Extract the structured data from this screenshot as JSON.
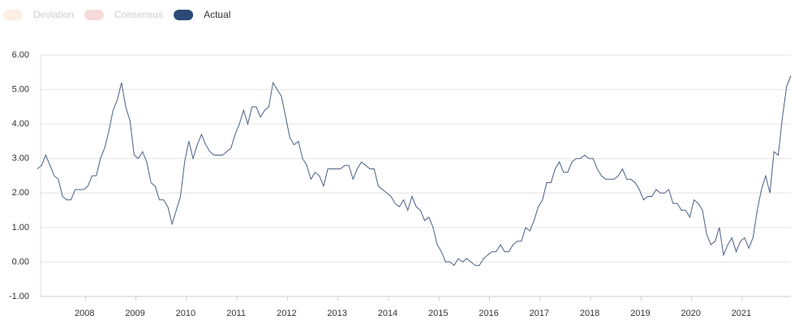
{
  "chart_data": {
    "type": "line",
    "legend": [
      {
        "name": "Deviation",
        "color": "#fbeee4"
      },
      {
        "name": "Consensus",
        "color": "#f6d9d9"
      },
      {
        "name": "Actual",
        "color": "#2d4a77"
      }
    ],
    "series": [
      {
        "name": "Actual",
        "color": "#4a5f85",
        "values": [
          2.7,
          2.8,
          3.1,
          2.8,
          2.5,
          2.4,
          1.9,
          1.8,
          1.8,
          2.1,
          2.1,
          2.1,
          2.2,
          2.5,
          2.5,
          3.0,
          3.3,
          3.8,
          4.4,
          4.7,
          5.2,
          4.5,
          4.1,
          3.1,
          3.0,
          3.2,
          2.9,
          2.3,
          2.2,
          1.8,
          1.8,
          1.6,
          1.1,
          1.5,
          1.9,
          2.9,
          3.5,
          3.0,
          3.4,
          3.7,
          3.4,
          3.2,
          3.1,
          3.1,
          3.1,
          3.2,
          3.3,
          3.7,
          4.0,
          4.4,
          4.0,
          4.5,
          4.5,
          4.2,
          4.4,
          4.5,
          5.2,
          5.0,
          4.8,
          4.2,
          3.6,
          3.4,
          3.5,
          3.0,
          2.8,
          2.4,
          2.6,
          2.5,
          2.2,
          2.7,
          2.7,
          2.7,
          2.7,
          2.8,
          2.8,
          2.4,
          2.7,
          2.9,
          2.8,
          2.7,
          2.7,
          2.2,
          2.1,
          2.0,
          1.9,
          1.7,
          1.6,
          1.8,
          1.5,
          1.9,
          1.6,
          1.5,
          1.2,
          1.3,
          1.0,
          0.5,
          0.3,
          0.0,
          0.0,
          -0.1,
          0.1,
          0.0,
          0.1,
          0.0,
          -0.1,
          -0.1,
          0.1,
          0.2,
          0.3,
          0.3,
          0.5,
          0.3,
          0.3,
          0.5,
          0.6,
          0.6,
          1.0,
          0.9,
          1.2,
          1.6,
          1.8,
          2.3,
          2.3,
          2.7,
          2.9,
          2.6,
          2.6,
          2.9,
          3.0,
          3.0,
          3.1,
          3.0,
          3.0,
          2.7,
          2.5,
          2.4,
          2.4,
          2.4,
          2.5,
          2.7,
          2.4,
          2.4,
          2.3,
          2.1,
          1.8,
          1.9,
          1.9,
          2.1,
          2.0,
          2.0,
          2.1,
          1.7,
          1.7,
          1.5,
          1.5,
          1.3,
          1.8,
          1.7,
          1.5,
          0.8,
          0.5,
          0.6,
          1.0,
          0.2,
          0.5,
          0.7,
          0.3,
          0.6,
          0.7,
          0.4,
          0.7,
          1.5,
          2.1,
          2.5,
          2.0,
          3.2,
          3.1,
          4.2,
          5.1,
          5.4
        ]
      }
    ],
    "xlim": [
      0,
      179
    ],
    "xticks": [
      {
        "value": 12,
        "label": "2008"
      },
      {
        "value": 24,
        "label": "2009"
      },
      {
        "value": 36,
        "label": "2010"
      },
      {
        "value": 48,
        "label": "2011"
      },
      {
        "value": 60,
        "label": "2012"
      },
      {
        "value": 72,
        "label": "2013"
      },
      {
        "value": 84,
        "label": "2014"
      },
      {
        "value": 96,
        "label": "2015"
      },
      {
        "value": 108,
        "label": "2016"
      },
      {
        "value": 120,
        "label": "2017"
      },
      {
        "value": 132,
        "label": "2018"
      },
      {
        "value": 144,
        "label": "2019"
      },
      {
        "value": 156,
        "label": "2020"
      },
      {
        "value": 168,
        "label": "2021"
      }
    ],
    "ylim": [
      -1,
      6
    ],
    "yticks": [
      {
        "value": -1,
        "label": "-1.00"
      },
      {
        "value": 0,
        "label": "0.00"
      },
      {
        "value": 1,
        "label": "1.00"
      },
      {
        "value": 2,
        "label": "2.00"
      },
      {
        "value": 3,
        "label": "3.00"
      },
      {
        "value": 4,
        "label": "4.00"
      },
      {
        "value": 5,
        "label": "5.00"
      },
      {
        "value": 6,
        "label": "6.00"
      }
    ],
    "grid": true
  }
}
